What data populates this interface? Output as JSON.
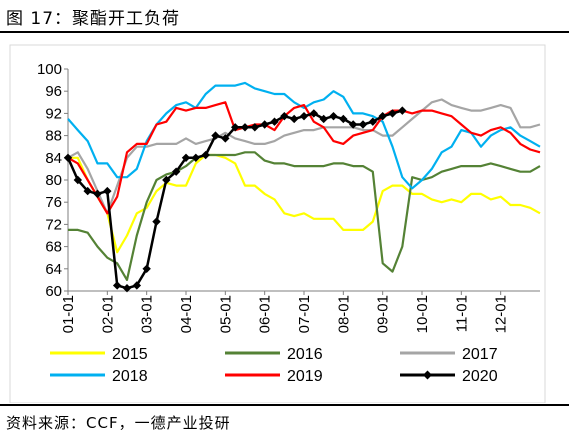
{
  "figure_title": "图 17：聚酯开工负荷",
  "source_note": "资料来源：CCF，一德产业投研",
  "chart_data": {
    "type": "line",
    "title": "",
    "xlabel": "",
    "ylabel": "",
    "ylim": [
      60,
      100
    ],
    "yticks": [
      60,
      64,
      68,
      72,
      76,
      80,
      84,
      88,
      92,
      96,
      100
    ],
    "xlim": [
      1,
      13
    ],
    "xticks": [
      "01-01",
      "02-01",
      "03-01",
      "04-01",
      "05-01",
      "06-01",
      "07-01",
      "08-01",
      "09-01",
      "10-01",
      "11-01",
      "12-01"
    ],
    "grid": false,
    "legend_position": "bottom",
    "series": [
      {
        "name": "2015",
        "color": "#ffff00",
        "marker": "none",
        "x": [
          1.0,
          1.25,
          1.5,
          1.75,
          2.0,
          2.25,
          2.5,
          2.75,
          3.0,
          3.25,
          3.5,
          3.75,
          4.0,
          4.25,
          4.5,
          4.75,
          5.0,
          5.25,
          5.5,
          5.75,
          6.0,
          6.25,
          6.5,
          6.75,
          7.0,
          7.25,
          7.5,
          7.75,
          8.0,
          8.25,
          8.5,
          8.75,
          9.0,
          9.25,
          9.5,
          9.75,
          10.0,
          10.25,
          10.5,
          10.75,
          11.0,
          11.25,
          11.5,
          11.75,
          12.0,
          12.25,
          12.5,
          12.75,
          13.0
        ],
        "values": [
          84,
          84,
          80,
          77,
          74,
          67,
          70,
          74,
          75,
          78,
          79.5,
          79,
          79,
          83,
          84.5,
          84.5,
          84,
          83,
          79,
          79,
          77.5,
          76.5,
          74,
          73.5,
          74,
          73,
          73,
          73,
          71,
          71,
          71,
          72.5,
          78,
          79,
          79,
          77.5,
          77.5,
          76.5,
          76,
          76.5,
          76,
          77.5,
          77.5,
          76.5,
          77,
          75.5,
          75.5,
          75,
          74
        ]
      },
      {
        "name": "2016",
        "color": "#548235",
        "marker": "none",
        "x": [
          1.0,
          1.25,
          1.5,
          1.75,
          2.0,
          2.25,
          2.5,
          2.75,
          3.0,
          3.25,
          3.5,
          3.75,
          4.0,
          4.25,
          4.5,
          4.75,
          5.0,
          5.25,
          5.5,
          5.75,
          6.0,
          6.25,
          6.5,
          6.75,
          7.0,
          7.25,
          7.5,
          7.75,
          8.0,
          8.25,
          8.5,
          8.75,
          9.0,
          9.25,
          9.5,
          9.75,
          10.0,
          10.25,
          10.5,
          10.75,
          11.0,
          11.25,
          11.5,
          11.75,
          12.0,
          12.25,
          12.5,
          12.75,
          13.0
        ],
        "values": [
          71,
          71,
          70.5,
          68,
          66,
          65,
          62,
          70,
          76,
          80,
          81,
          81.5,
          82.5,
          84,
          84.5,
          84.5,
          84.5,
          84.5,
          85,
          85,
          83.5,
          83,
          83,
          82.5,
          82.5,
          82.5,
          82.5,
          83,
          83,
          82.5,
          82.5,
          81.5,
          65,
          63.5,
          68,
          80.5,
          80,
          80.5,
          81.5,
          82,
          82.5,
          82.5,
          82.5,
          83,
          82.5,
          82,
          81.5,
          81.5,
          82.5
        ]
      },
      {
        "name": "2017",
        "color": "#a5a5a5",
        "marker": "none",
        "x": [
          1.0,
          1.25,
          1.5,
          1.75,
          2.0,
          2.25,
          2.5,
          2.75,
          3.0,
          3.25,
          3.5,
          3.75,
          4.0,
          4.25,
          4.5,
          4.75,
          5.0,
          5.25,
          5.5,
          5.75,
          6.0,
          6.25,
          6.5,
          6.75,
          7.0,
          7.25,
          7.5,
          7.75,
          8.0,
          8.25,
          8.5,
          8.75,
          9.0,
          9.25,
          9.5,
          9.75,
          10.0,
          10.25,
          10.5,
          10.75,
          11.0,
          11.25,
          11.5,
          11.75,
          12.0,
          12.25,
          12.5,
          12.75,
          13.0
        ],
        "values": [
          84,
          85,
          82,
          78,
          74,
          79,
          84,
          86,
          86,
          86.5,
          86.5,
          86.5,
          87.5,
          86.5,
          87,
          87.5,
          88.5,
          87.5,
          87,
          86.5,
          86.5,
          87,
          88,
          88.5,
          89,
          89,
          89.5,
          89.5,
          89.5,
          89.5,
          89,
          89,
          88,
          88,
          89.5,
          91,
          92.5,
          94,
          94.5,
          93.5,
          93,
          92.5,
          92.5,
          93,
          93.5,
          93,
          89.5,
          89.5,
          90
        ]
      },
      {
        "name": "2018",
        "color": "#00b0f0",
        "marker": "none",
        "x": [
          1.0,
          1.25,
          1.5,
          1.75,
          2.0,
          2.25,
          2.5,
          2.75,
          3.0,
          3.25,
          3.5,
          3.75,
          4.0,
          4.25,
          4.5,
          4.75,
          5.0,
          5.25,
          5.5,
          5.75,
          6.0,
          6.25,
          6.5,
          6.75,
          7.0,
          7.25,
          7.5,
          7.75,
          8.0,
          8.25,
          8.5,
          8.75,
          9.0,
          9.25,
          9.5,
          9.75,
          10.0,
          10.25,
          10.5,
          10.75,
          11.0,
          11.25,
          11.5,
          11.75,
          12.0,
          12.25,
          12.5,
          12.75,
          13.0
        ],
        "values": [
          91,
          89,
          87,
          83,
          83,
          80.5,
          80.5,
          82,
          87,
          90,
          92,
          93.5,
          94,
          93,
          95.5,
          97,
          97,
          97,
          97.5,
          96.5,
          96,
          95.5,
          95.5,
          94,
          93,
          94,
          94.5,
          96,
          95,
          92,
          92,
          91.5,
          90.5,
          86,
          80.5,
          78.5,
          80,
          82,
          85,
          86,
          89,
          88.5,
          86,
          88,
          89,
          89.5,
          88,
          87,
          86
        ]
      },
      {
        "name": "2019",
        "color": "#ff0000",
        "marker": "none",
        "x": [
          1.0,
          1.25,
          1.5,
          1.75,
          2.0,
          2.25,
          2.5,
          2.75,
          3.0,
          3.25,
          3.5,
          3.75,
          4.0,
          4.25,
          4.5,
          4.75,
          5.0,
          5.25,
          5.5,
          5.75,
          6.0,
          6.25,
          6.5,
          6.75,
          7.0,
          7.25,
          7.5,
          7.75,
          8.0,
          8.25,
          8.5,
          8.75,
          9.0,
          9.25,
          9.5,
          9.75,
          10.0,
          10.25,
          10.5,
          10.75,
          11.0,
          11.25,
          11.5,
          11.75,
          12.0,
          12.25,
          12.5,
          12.75,
          13.0
        ],
        "values": [
          84,
          83,
          80,
          77,
          74,
          77,
          85,
          86.5,
          86.5,
          90,
          90.5,
          93,
          92.5,
          93,
          93,
          93.5,
          94,
          89,
          89.5,
          90,
          90,
          89,
          91.5,
          93,
          93.5,
          90.5,
          89.5,
          87,
          86.5,
          88,
          88.5,
          89,
          91.5,
          92.5,
          92.5,
          92,
          92.5,
          92.5,
          92,
          91.5,
          90,
          88.5,
          88,
          89,
          89.5,
          88.5,
          86.5,
          85.5,
          85
        ]
      },
      {
        "name": "2020",
        "color": "#000000",
        "marker": "diamond",
        "x": [
          1.0,
          1.25,
          1.5,
          1.75,
          2.0,
          2.25,
          2.5,
          2.75,
          3.0,
          3.25,
          3.5,
          3.75,
          4.0,
          4.25,
          4.5,
          4.75,
          5.0,
          5.25,
          5.5,
          5.75,
          6.0,
          6.25,
          6.5,
          6.75,
          7.0,
          7.25,
          7.5,
          7.75,
          8.0,
          8.25,
          8.5,
          8.75,
          9.0,
          9.25,
          9.5
        ],
        "values": [
          84,
          80,
          78,
          77.5,
          78,
          61,
          60.5,
          61,
          64,
          72.5,
          80,
          81.5,
          84,
          84,
          84.5,
          88,
          87.5,
          89.5,
          89.5,
          89.5,
          90,
          90.5,
          91.5,
          91,
          91.5,
          92,
          91,
          91.5,
          91,
          90,
          90,
          90.5,
          91.5,
          92,
          92.5
        ]
      }
    ]
  }
}
